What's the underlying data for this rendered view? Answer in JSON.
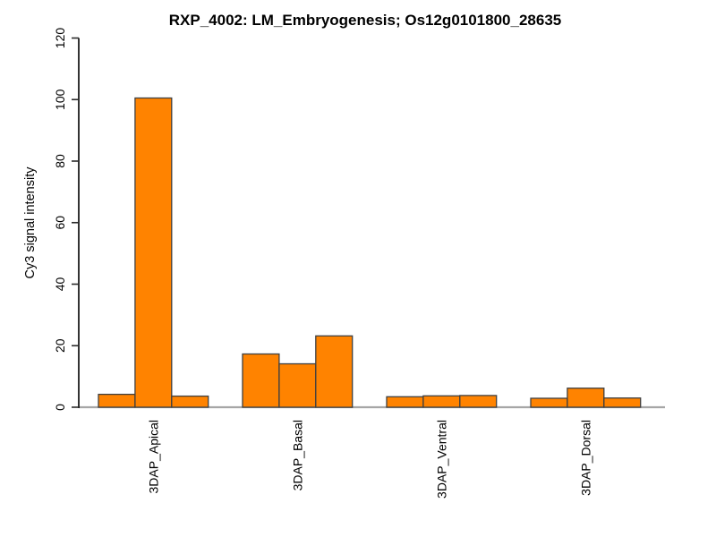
{
  "figure": {
    "title": "RXP_4002: LM_Embryogenesis; Os12g0101800_28635",
    "ylabel": "Cy3 signal intensity"
  },
  "chart_data": {
    "type": "bar",
    "title": "RXP_4002: LM_Embryogenesis; Os12g0101800_28635",
    "xlabel": "",
    "ylabel": "Cy3 signal intensity",
    "ylim": [
      0,
      120
    ],
    "yticks": [
      0,
      20,
      40,
      60,
      80,
      100,
      120
    ],
    "grid": false,
    "legend_position": "none",
    "bars_per_group": 3,
    "tick_label_rotation_deg": 90,
    "x_label_rotation_deg": 90,
    "colors": {
      "bar_fill": "#FF8300",
      "bar_border": "#404040",
      "axis": "#000000",
      "tick": "#2b2b2b",
      "baseline": "#A6A6A6",
      "text": "#000000",
      "background": "#FFFFFF"
    },
    "groups": [
      {
        "label": "3DAP_Apical",
        "values": [
          4.2,
          100.5,
          3.6
        ]
      },
      {
        "label": "3DAP_Basal",
        "values": [
          17.3,
          14.1,
          23.2
        ]
      },
      {
        "label": "3DAP_Ventral",
        "values": [
          3.4,
          3.7,
          3.8
        ]
      },
      {
        "label": "3DAP_Dorsal",
        "values": [
          2.9,
          6.2,
          3.0
        ]
      }
    ]
  }
}
